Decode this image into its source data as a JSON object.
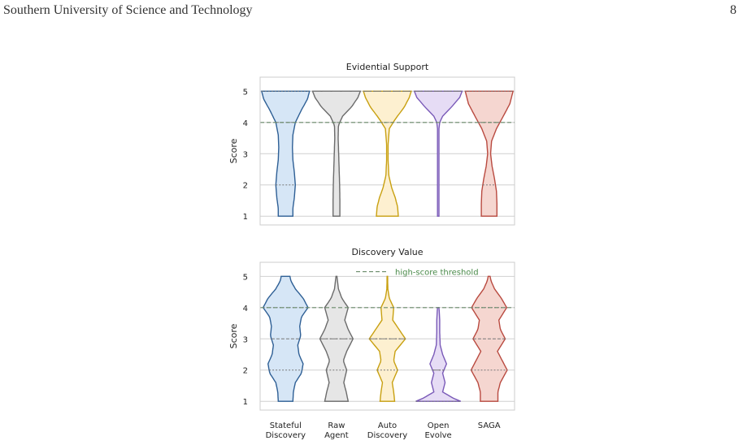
{
  "header": {
    "institution": "Southern University of Science and Technology",
    "page_number": "8"
  },
  "colors": {
    "threshold": "#6a8a6a",
    "grid": "#d0d0d0",
    "spine": "#cccccc"
  },
  "chart_data": [
    {
      "type": "violin",
      "title": "Evidential Support",
      "ylabel": "Score",
      "ylim": [
        0.72,
        5.45
      ],
      "yticks": [
        1,
        2,
        3,
        4,
        5
      ],
      "grid": true,
      "threshold": 4,
      "categories": [
        "Stateful Discovery",
        "Raw Agent",
        "Auto Discovery",
        "Open Evolve",
        "SAGA"
      ],
      "series": [
        {
          "fill": "#d6e6f6",
          "edge": "#2e5f95",
          "density": [
            [
              1,
              0.3
            ],
            [
              1.25,
              0.3
            ],
            [
              1.6,
              0.36
            ],
            [
              2.0,
              0.4
            ],
            [
              2.4,
              0.36
            ],
            [
              2.8,
              0.3
            ],
            [
              3.2,
              0.28
            ],
            [
              3.6,
              0.3
            ],
            [
              4.0,
              0.4
            ],
            [
              4.4,
              0.65
            ],
            [
              4.75,
              0.9
            ],
            [
              5,
              0.98
            ]
          ],
          "quartiles": [
            2,
            4,
            5
          ]
        },
        {
          "fill": "#e6e6e6",
          "edge": "#6b6b6b",
          "density": [
            [
              1,
              0.14
            ],
            [
              1.5,
              0.14
            ],
            [
              2.0,
              0.13
            ],
            [
              2.5,
              0.11
            ],
            [
              3.0,
              0.09
            ],
            [
              3.5,
              0.07
            ],
            [
              3.9,
              0.08
            ],
            [
              4.2,
              0.25
            ],
            [
              4.5,
              0.62
            ],
            [
              4.8,
              0.88
            ],
            [
              5,
              0.98
            ]
          ],
          "quartiles": [
            4,
            5,
            5
          ]
        },
        {
          "fill": "#fdf0d0",
          "edge": "#c8a010",
          "density": [
            [
              1,
              0.45
            ],
            [
              1.3,
              0.42
            ],
            [
              1.6,
              0.32
            ],
            [
              1.9,
              0.18
            ],
            [
              2.3,
              0.06
            ],
            [
              2.8,
              0.03
            ],
            [
              3.3,
              0.03
            ],
            [
              3.8,
              0.08
            ],
            [
              4.1,
              0.32
            ],
            [
              4.5,
              0.7
            ],
            [
              4.8,
              0.9
            ],
            [
              5,
              0.98
            ]
          ],
          "quartiles": [
            4,
            5,
            5
          ]
        },
        {
          "fill": "#e6dcf5",
          "edge": "#7a5ab8",
          "density": [
            [
              1,
              0.03
            ],
            [
              2,
              0.03
            ],
            [
              3,
              0.03
            ],
            [
              3.8,
              0.03
            ],
            [
              4.0,
              0.06
            ],
            [
              4.2,
              0.18
            ],
            [
              4.5,
              0.55
            ],
            [
              4.8,
              0.88
            ],
            [
              5,
              0.98
            ]
          ],
          "quartiles": [
            5,
            5,
            5
          ]
        },
        {
          "fill": "#f5d6d0",
          "edge": "#b94a40",
          "density": [
            [
              1,
              0.32
            ],
            [
              1.4,
              0.32
            ],
            [
              1.8,
              0.3
            ],
            [
              2.2,
              0.22
            ],
            [
              2.6,
              0.12
            ],
            [
              3.0,
              0.06
            ],
            [
              3.4,
              0.1
            ],
            [
              3.8,
              0.3
            ],
            [
              4.2,
              0.58
            ],
            [
              4.6,
              0.85
            ],
            [
              5,
              0.98
            ]
          ],
          "quartiles": [
            2,
            4,
            5
          ]
        }
      ]
    },
    {
      "type": "violin",
      "title": "Discovery Value",
      "ylabel": "Score",
      "ylim": [
        0.72,
        5.45
      ],
      "yticks": [
        1,
        2,
        3,
        4,
        5
      ],
      "grid": true,
      "threshold": 4,
      "legend": {
        "label": "high-score threshold",
        "location": "top-center"
      },
      "categories": [
        "Stateful Discovery",
        "Raw Agent",
        "Auto Discovery",
        "Open Evolve",
        "SAGA"
      ],
      "series": [
        {
          "fill": "#d6e6f6",
          "edge": "#2e5f95",
          "density": [
            [
              1,
              0.3
            ],
            [
              1.3,
              0.32
            ],
            [
              1.6,
              0.4
            ],
            [
              1.9,
              0.65
            ],
            [
              2.2,
              0.72
            ],
            [
              2.5,
              0.55
            ],
            [
              2.8,
              0.5
            ],
            [
              3.1,
              0.62
            ],
            [
              3.4,
              0.58
            ],
            [
              3.7,
              0.65
            ],
            [
              4.0,
              0.92
            ],
            [
              4.3,
              0.72
            ],
            [
              4.6,
              0.4
            ],
            [
              4.85,
              0.22
            ],
            [
              5,
              0.18
            ]
          ],
          "quartiles": [
            2,
            3,
            4
          ]
        },
        {
          "fill": "#e6e6e6",
          "edge": "#6b6b6b",
          "density": [
            [
              1,
              0.48
            ],
            [
              1.3,
              0.4
            ],
            [
              1.6,
              0.3
            ],
            [
              2.0,
              0.42
            ],
            [
              2.3,
              0.28
            ],
            [
              2.6,
              0.42
            ],
            [
              3.0,
              0.68
            ],
            [
              3.3,
              0.48
            ],
            [
              3.6,
              0.34
            ],
            [
              4.0,
              0.48
            ],
            [
              4.3,
              0.22
            ],
            [
              4.6,
              0.08
            ],
            [
              5,
              0.02
            ]
          ],
          "quartiles": [
            2,
            3,
            3
          ]
        },
        {
          "fill": "#fdf0d0",
          "edge": "#c8a010",
          "density": [
            [
              1,
              0.3
            ],
            [
              1.3,
              0.26
            ],
            [
              1.6,
              0.2
            ],
            [
              2.0,
              0.42
            ],
            [
              2.3,
              0.26
            ],
            [
              2.6,
              0.32
            ],
            [
              3.0,
              0.74
            ],
            [
              3.3,
              0.48
            ],
            [
              3.6,
              0.22
            ],
            [
              4.0,
              0.26
            ],
            [
              4.3,
              0.08
            ],
            [
              4.6,
              0.02
            ],
            [
              5,
              0.01
            ]
          ],
          "quartiles": [
            2,
            3,
            3
          ]
        },
        {
          "fill": "#e6dcf5",
          "edge": "#7a5ab8",
          "density": [
            [
              1,
              0.92
            ],
            [
              1.1,
              0.62
            ],
            [
              1.3,
              0.18
            ],
            [
              1.6,
              0.28
            ],
            [
              1.9,
              0.18
            ],
            [
              2.2,
              0.34
            ],
            [
              2.5,
              0.18
            ],
            [
              2.8,
              0.08
            ],
            [
              3.2,
              0.06
            ],
            [
              3.6,
              0.06
            ],
            [
              3.9,
              0.04
            ],
            [
              4,
              0.03
            ]
          ],
          "quartiles": [
            1,
            2,
            2
          ]
        },
        {
          "fill": "#f5d6d0",
          "edge": "#b94a40",
          "density": [
            [
              1,
              0.36
            ],
            [
              1.3,
              0.36
            ],
            [
              1.6,
              0.46
            ],
            [
              2.0,
              0.74
            ],
            [
              2.3,
              0.54
            ],
            [
              2.6,
              0.34
            ],
            [
              3.0,
              0.66
            ],
            [
              3.3,
              0.46
            ],
            [
              3.6,
              0.4
            ],
            [
              4.0,
              0.72
            ],
            [
              4.3,
              0.5
            ],
            [
              4.6,
              0.22
            ],
            [
              4.85,
              0.08
            ],
            [
              5,
              0.04
            ]
          ],
          "quartiles": [
            2,
            3,
            4
          ]
        }
      ]
    }
  ]
}
